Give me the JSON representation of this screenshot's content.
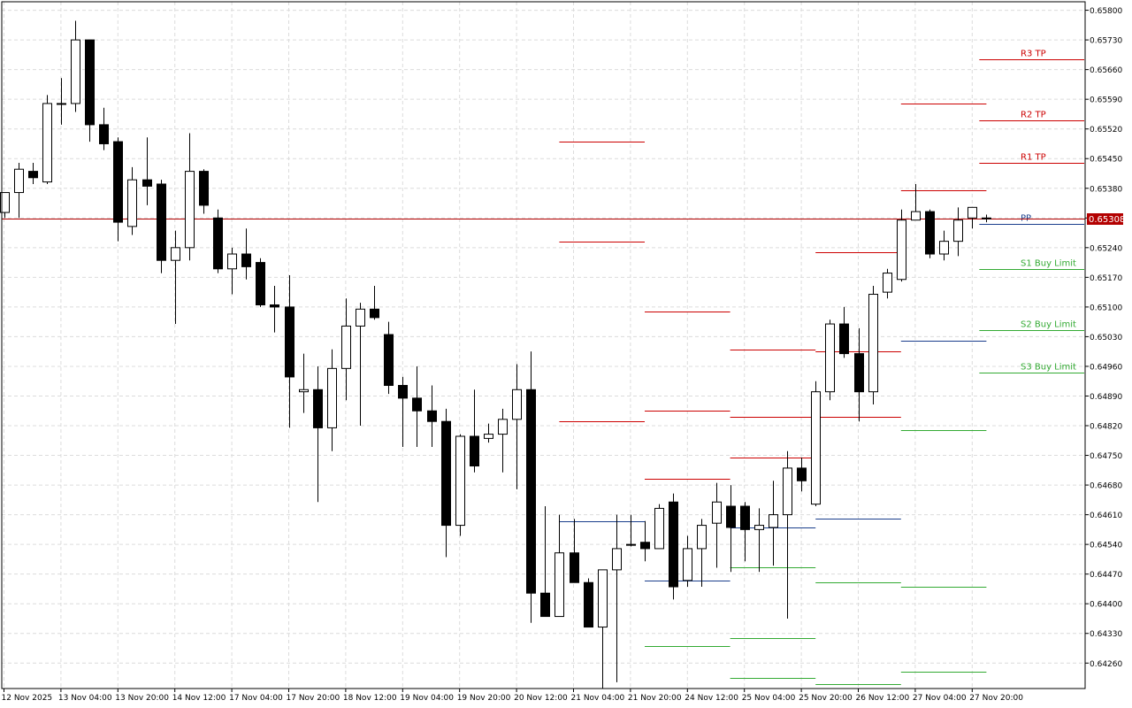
{
  "chart_data": {
    "type": "candlestick",
    "symbol_price_label": "0.65308",
    "last_price": 0.65308,
    "ylim": [
      0.642,
      0.6582
    ],
    "y_ticks": [
      "0.65800",
      "0.65730",
      "0.65660",
      "0.65590",
      "0.65520",
      "0.65450",
      "0.65380",
      "0.65310",
      "0.65240",
      "0.65170",
      "0.65100",
      "0.65030",
      "0.64960",
      "0.64890",
      "0.64820",
      "0.64750",
      "0.64680",
      "0.64610",
      "0.64540",
      "0.64470",
      "0.64400",
      "0.64330",
      "0.64260"
    ],
    "x_ticks": [
      {
        "label": "12 Nov 2025",
        "index": 0
      },
      {
        "label": "13 Nov 04:00",
        "index": 4
      },
      {
        "label": "13 Nov 20:00",
        "index": 8
      },
      {
        "label": "14 Nov 12:00",
        "index": 12
      },
      {
        "label": "17 Nov 04:00",
        "index": 16
      },
      {
        "label": "17 Nov 20:00",
        "index": 20
      },
      {
        "label": "18 Nov 12:00",
        "index": 24
      },
      {
        "label": "19 Nov 04:00",
        "index": 28
      },
      {
        "label": "19 Nov 20:00",
        "index": 32
      },
      {
        "label": "20 Nov 12:00",
        "index": 36
      },
      {
        "label": "21 Nov 04:00",
        "index": 40
      },
      {
        "label": "21 Nov 20:00",
        "index": 44
      },
      {
        "label": "24 Nov 12:00",
        "index": 48
      },
      {
        "label": "25 Nov 04:00",
        "index": 52
      },
      {
        "label": "25 Nov 20:00",
        "index": 56
      },
      {
        "label": "26 Nov 12:00",
        "index": 60
      },
      {
        "label": "27 Nov 04:00",
        "index": 64
      },
      {
        "label": "27 Nov 20:00",
        "index": 68
      }
    ],
    "candles": [
      {
        "o": 0.65323,
        "h": 0.6537,
        "l": 0.6531,
        "c": 0.6537
      },
      {
        "o": 0.6537,
        "h": 0.6544,
        "l": 0.6531,
        "c": 0.65425
      },
      {
        "o": 0.6542,
        "h": 0.6544,
        "l": 0.6539,
        "c": 0.65405
      },
      {
        "o": 0.65395,
        "h": 0.656,
        "l": 0.6539,
        "c": 0.6558
      },
      {
        "o": 0.6558,
        "h": 0.6564,
        "l": 0.6553,
        "c": 0.6558
      },
      {
        "o": 0.6558,
        "h": 0.65775,
        "l": 0.6556,
        "c": 0.6573
      },
      {
        "o": 0.6573,
        "h": 0.6573,
        "l": 0.6549,
        "c": 0.6553
      },
      {
        "o": 0.6553,
        "h": 0.6557,
        "l": 0.6547,
        "c": 0.65485
      },
      {
        "o": 0.6549,
        "h": 0.655,
        "l": 0.65255,
        "c": 0.653
      },
      {
        "o": 0.6529,
        "h": 0.6543,
        "l": 0.6527,
        "c": 0.654
      },
      {
        "o": 0.654,
        "h": 0.655,
        "l": 0.6534,
        "c": 0.65385
      },
      {
        "o": 0.6539,
        "h": 0.654,
        "l": 0.6518,
        "c": 0.6521
      },
      {
        "o": 0.6521,
        "h": 0.6528,
        "l": 0.6506,
        "c": 0.6524
      },
      {
        "o": 0.6524,
        "h": 0.6551,
        "l": 0.6521,
        "c": 0.6542
      },
      {
        "o": 0.6542,
        "h": 0.65425,
        "l": 0.6532,
        "c": 0.6534
      },
      {
        "o": 0.6531,
        "h": 0.6533,
        "l": 0.6518,
        "c": 0.6519
      },
      {
        "o": 0.6519,
        "h": 0.6524,
        "l": 0.6513,
        "c": 0.65225
      },
      {
        "o": 0.65225,
        "h": 0.65285,
        "l": 0.65165,
        "c": 0.65195
      },
      {
        "o": 0.65205,
        "h": 0.65215,
        "l": 0.651,
        "c": 0.65105
      },
      {
        "o": 0.65105,
        "h": 0.6515,
        "l": 0.6504,
        "c": 0.651
      },
      {
        "o": 0.651,
        "h": 0.65175,
        "l": 0.64815,
        "c": 0.64935
      },
      {
        "o": 0.649,
        "h": 0.6499,
        "l": 0.6485,
        "c": 0.64905
      },
      {
        "o": 0.64905,
        "h": 0.6496,
        "l": 0.6464,
        "c": 0.64815
      },
      {
        "o": 0.64815,
        "h": 0.65,
        "l": 0.6476,
        "c": 0.64955
      },
      {
        "o": 0.64955,
        "h": 0.6512,
        "l": 0.6488,
        "c": 0.65055
      },
      {
        "o": 0.65055,
        "h": 0.6511,
        "l": 0.6482,
        "c": 0.65095
      },
      {
        "o": 0.65095,
        "h": 0.6515,
        "l": 0.6507,
        "c": 0.65075
      },
      {
        "o": 0.65035,
        "h": 0.65065,
        "l": 0.64895,
        "c": 0.64915
      },
      {
        "o": 0.64915,
        "h": 0.64935,
        "l": 0.6477,
        "c": 0.64885
      },
      {
        "o": 0.64885,
        "h": 0.6496,
        "l": 0.6477,
        "c": 0.64855
      },
      {
        "o": 0.64855,
        "h": 0.64915,
        "l": 0.6477,
        "c": 0.6483
      },
      {
        "o": 0.6483,
        "h": 0.6486,
        "l": 0.6451,
        "c": 0.64585
      },
      {
        "o": 0.64585,
        "h": 0.648,
        "l": 0.6456,
        "c": 0.64795
      },
      {
        "o": 0.64795,
        "h": 0.64905,
        "l": 0.6471,
        "c": 0.64725
      },
      {
        "o": 0.6479,
        "h": 0.64825,
        "l": 0.6478,
        "c": 0.648
      },
      {
        "o": 0.648,
        "h": 0.6486,
        "l": 0.6471,
        "c": 0.64835
      },
      {
        "o": 0.64835,
        "h": 0.64965,
        "l": 0.6467,
        "c": 0.64905
      },
      {
        "o": 0.64905,
        "h": 0.64995,
        "l": 0.64355,
        "c": 0.64425
      },
      {
        "o": 0.64425,
        "h": 0.6463,
        "l": 0.6437,
        "c": 0.6437
      },
      {
        "o": 0.6437,
        "h": 0.6461,
        "l": 0.6437,
        "c": 0.6452
      },
      {
        "o": 0.6452,
        "h": 0.646,
        "l": 0.6445,
        "c": 0.6445
      },
      {
        "o": 0.6445,
        "h": 0.6446,
        "l": 0.6435,
        "c": 0.64345
      },
      {
        "o": 0.64345,
        "h": 0.6448,
        "l": 0.642,
        "c": 0.6448
      },
      {
        "o": 0.6448,
        "h": 0.6461,
        "l": 0.64215,
        "c": 0.6453
      },
      {
        "o": 0.6454,
        "h": 0.6461,
        "l": 0.64535,
        "c": 0.6454
      },
      {
        "o": 0.64545,
        "h": 0.64595,
        "l": 0.645,
        "c": 0.6453
      },
      {
        "o": 0.6453,
        "h": 0.64635,
        "l": 0.6453,
        "c": 0.64625
      },
      {
        "o": 0.6464,
        "h": 0.6466,
        "l": 0.6441,
        "c": 0.6444
      },
      {
        "o": 0.64455,
        "h": 0.6456,
        "l": 0.6444,
        "c": 0.6453
      },
      {
        "o": 0.6453,
        "h": 0.646,
        "l": 0.6444,
        "c": 0.64585
      },
      {
        "o": 0.6459,
        "h": 0.64685,
        "l": 0.64485,
        "c": 0.6464
      },
      {
        "o": 0.6463,
        "h": 0.6468,
        "l": 0.64475,
        "c": 0.6458
      },
      {
        "o": 0.6463,
        "h": 0.6464,
        "l": 0.645,
        "c": 0.64575
      },
      {
        "o": 0.64575,
        "h": 0.64625,
        "l": 0.64475,
        "c": 0.64585
      },
      {
        "o": 0.6458,
        "h": 0.6469,
        "l": 0.6449,
        "c": 0.6461
      },
      {
        "o": 0.6461,
        "h": 0.6476,
        "l": 0.64365,
        "c": 0.6472
      },
      {
        "o": 0.6472,
        "h": 0.64745,
        "l": 0.64665,
        "c": 0.6469
      },
      {
        "o": 0.64635,
        "h": 0.64925,
        "l": 0.6463,
        "c": 0.649
      },
      {
        "o": 0.649,
        "h": 0.6507,
        "l": 0.6488,
        "c": 0.6506
      },
      {
        "o": 0.6506,
        "h": 0.651,
        "l": 0.6498,
        "c": 0.6499
      },
      {
        "o": 0.6499,
        "h": 0.6505,
        "l": 0.6483,
        "c": 0.649
      },
      {
        "o": 0.649,
        "h": 0.6515,
        "l": 0.6487,
        "c": 0.6513
      },
      {
        "o": 0.65135,
        "h": 0.6519,
        "l": 0.6512,
        "c": 0.6518
      },
      {
        "o": 0.65165,
        "h": 0.6533,
        "l": 0.6516,
        "c": 0.65305
      },
      {
        "o": 0.65305,
        "h": 0.6539,
        "l": 0.65305,
        "c": 0.65325
      },
      {
        "o": 0.65325,
        "h": 0.6533,
        "l": 0.65215,
        "c": 0.65225
      },
      {
        "o": 0.65225,
        "h": 0.6528,
        "l": 0.6521,
        "c": 0.65255
      },
      {
        "o": 0.65255,
        "h": 0.65335,
        "l": 0.6522,
        "c": 0.65305
      },
      {
        "o": 0.6531,
        "h": 0.65335,
        "l": 0.65285,
        "c": 0.65335
      },
      {
        "o": 0.6531,
        "h": 0.65318,
        "l": 0.653,
        "c": 0.65308
      }
    ],
    "pivot_segments": [
      {
        "x0": 39,
        "x1": 45,
        "y": 0.6549,
        "color": "#cc0000"
      },
      {
        "x0": 39,
        "x1": 45,
        "y": 0.65255,
        "color": "#cc0000"
      },
      {
        "x0": 39,
        "x1": 45,
        "y": 0.6483,
        "color": "#cc0000"
      },
      {
        "x0": 39,
        "x1": 45,
        "y": 0.64595,
        "color": "#1a3e8c"
      },
      {
        "x0": 45,
        "x1": 51,
        "y": 0.6509,
        "color": "#cc0000"
      },
      {
        "x0": 45,
        "x1": 51,
        "y": 0.64855,
        "color": "#cc0000"
      },
      {
        "x0": 45,
        "x1": 51,
        "y": 0.64695,
        "color": "#cc0000"
      },
      {
        "x0": 45,
        "x1": 51,
        "y": 0.64455,
        "color": "#1a3e8c"
      },
      {
        "x0": 45,
        "x1": 51,
        "y": 0.643,
        "color": "#33aa33"
      },
      {
        "x0": 51,
        "x1": 57,
        "y": 0.65,
        "color": "#cc0000"
      },
      {
        "x0": 51,
        "x1": 57,
        "y": 0.6484,
        "color": "#cc0000"
      },
      {
        "x0": 51,
        "x1": 57,
        "y": 0.64745,
        "color": "#cc0000"
      },
      {
        "x0": 51,
        "x1": 57,
        "y": 0.6458,
        "color": "#1a3e8c"
      },
      {
        "x0": 51,
        "x1": 57,
        "y": 0.64485,
        "color": "#33aa33"
      },
      {
        "x0": 51,
        "x1": 57,
        "y": 0.6432,
        "color": "#33aa33"
      },
      {
        "x0": 51,
        "x1": 57,
        "y": 0.64225,
        "color": "#33aa33"
      },
      {
        "x0": 57,
        "x1": 63,
        "y": 0.6523,
        "color": "#cc0000"
      },
      {
        "x0": 57,
        "x1": 63,
        "y": 0.64995,
        "color": "#cc0000"
      },
      {
        "x0": 57,
        "x1": 63,
        "y": 0.6484,
        "color": "#cc0000"
      },
      {
        "x0": 57,
        "x1": 63,
        "y": 0.646,
        "color": "#1a3e8c"
      },
      {
        "x0": 57,
        "x1": 63,
        "y": 0.6445,
        "color": "#33aa33"
      },
      {
        "x0": 57,
        "x1": 63,
        "y": 0.6421,
        "color": "#33aa33"
      },
      {
        "x0": 63,
        "x1": 69,
        "y": 0.6558,
        "color": "#cc0000"
      },
      {
        "x0": 63,
        "x1": 69,
        "y": 0.65375,
        "color": "#cc0000"
      },
      {
        "x0": 63,
        "x1": 69,
        "y": 0.6502,
        "color": "#1a3e8c"
      },
      {
        "x0": 63,
        "x1": 69,
        "y": 0.6481,
        "color": "#33aa33"
      },
      {
        "x0": 63,
        "x1": 69,
        "y": 0.6444,
        "color": "#33aa33"
      },
      {
        "x0": 63,
        "x1": 69,
        "y": 0.6424,
        "color": "#33aa33"
      }
    ],
    "levels": [
      {
        "name": "R3 TP",
        "y": 0.65685,
        "color": "#cc0000"
      },
      {
        "name": "R2 TP",
        "y": 0.6554,
        "color": "#cc0000"
      },
      {
        "name": "R1 TP",
        "y": 0.6544,
        "color": "#cc0000"
      },
      {
        "name": "PP",
        "y": 0.65295,
        "color": "#1a3e8c"
      },
      {
        "name": "S1 Buy Limit",
        "y": 0.6519,
        "color": "#33aa33"
      },
      {
        "name": "S2 Buy Limit",
        "y": 0.65045,
        "color": "#33aa33"
      },
      {
        "name": "S3 Buy Limit",
        "y": 0.64945,
        "color": "#33aa33"
      }
    ],
    "colors": {
      "bull_body": "#ffffff",
      "bear_body": "#000000",
      "wick": "#000000",
      "grid": "#dcdcdc",
      "price_line": "#b30000",
      "price_tag_bg": "#b30000",
      "price_tag_text": "#ffffff",
      "axis_text": "#000000"
    }
  }
}
